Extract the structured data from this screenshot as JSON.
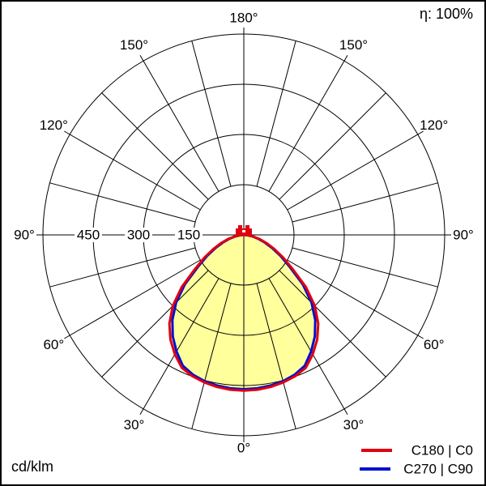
{
  "chart_data": {
    "type": "polar_photometric",
    "efficiency": "η: 100%",
    "unit": "cd/klm",
    "grid": {
      "ring_values": [
        150,
        300,
        450,
        600
      ],
      "labeled_rings": [
        150,
        300,
        450
      ],
      "spoke_step_deg": 15,
      "angle_label_step_deg": 30,
      "angle_labels": [
        "0°",
        "30°",
        "60°",
        "90°",
        "120°",
        "150°",
        "180°"
      ],
      "max_ring_value": 600
    },
    "fill_color": "#ffff9c",
    "series": [
      {
        "name": "C180 | C0",
        "color": "#e00010",
        "gamma_deg": [
          0,
          5,
          10,
          15,
          20,
          25,
          30,
          35,
          40,
          45,
          50,
          55,
          60,
          65,
          70,
          75,
          80,
          85,
          90
        ],
        "values": [
          465,
          464,
          461,
          456,
          449,
          438,
          412,
          382,
          346,
          300,
          242,
          178,
          136,
          101,
          73,
          49,
          29,
          13,
          0
        ]
      },
      {
        "name": "C270 | C90",
        "color": "#0010d0",
        "gamma_deg": [
          0,
          5,
          10,
          15,
          20,
          25,
          30,
          35,
          40,
          45,
          50,
          55,
          60,
          65,
          70,
          75,
          80,
          85,
          90
        ],
        "values": [
          461,
          460,
          457,
          452,
          444,
          431,
          402,
          370,
          332,
          286,
          230,
          168,
          127,
          94,
          67,
          44,
          26,
          11,
          0
        ]
      }
    ]
  },
  "legend": {
    "items": [
      {
        "label": "C180 | C0",
        "color": "#e00010"
      },
      {
        "label": "C270 | C90",
        "color": "#0010d0"
      }
    ]
  }
}
